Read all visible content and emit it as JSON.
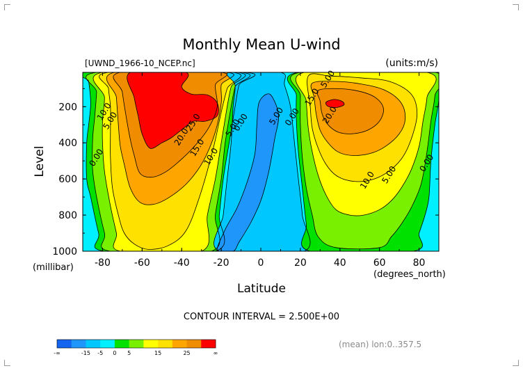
{
  "chart_data": {
    "type": "heatmap",
    "title": "Monthly Mean U-wind",
    "dataset_label": "[UWND_1966-10_NCEP.nc]",
    "units_label": "(units:m/s)",
    "xlabel": "Latitude",
    "x_units": "(degrees_north)",
    "ylabel": "Level",
    "y_units": "(millibar)",
    "x_ticks": [
      "-80",
      "-60",
      "-40",
      "-20",
      "0",
      "20",
      "40",
      "60",
      "80"
    ],
    "x_tick_values": [
      -80,
      -60,
      -40,
      -20,
      0,
      20,
      40,
      60,
      80
    ],
    "y_ticks": [
      "200",
      "400",
      "600",
      "800",
      "1000"
    ],
    "y_tick_values": [
      200,
      400,
      600,
      800,
      1000
    ],
    "xlim": [
      -90,
      90
    ],
    "ylim": [
      1000,
      10
    ],
    "contour_interval_text": "CONTOUR INTERVAL = 2.500E+00",
    "footer_right": "(mean) lon:0..357.5",
    "contour_labels": [
      {
        "text": "10.0",
        "lat": -78,
        "lev": 235
      },
      {
        "text": "5.00",
        "lat": -75,
        "lev": 285
      },
      {
        "text": "0.00",
        "lat": -82,
        "lev": 490
      },
      {
        "text": "25.0",
        "lat": -33,
        "lev": 295
      },
      {
        "text": "20.0",
        "lat": -39,
        "lev": 375
      },
      {
        "text": "15.0",
        "lat": -31,
        "lev": 435
      },
      {
        "text": "10.0",
        "lat": -24,
        "lev": 485
      },
      {
        "text": "5.00",
        "lat": -13,
        "lev": 325
      },
      {
        "text": "0.00",
        "lat": -9,
        "lev": 295
      },
      {
        "text": "5.00",
        "lat": 9,
        "lev": 260
      },
      {
        "text": "0.00",
        "lat": 17,
        "lev": 265
      },
      {
        "text": "15.0",
        "lat": 27,
        "lev": 155
      },
      {
        "text": "5.00",
        "lat": 35,
        "lev": 55
      },
      {
        "text": "20.0",
        "lat": 36,
        "lev": 255
      },
      {
        "text": "10.0",
        "lat": 55,
        "lev": 615
      },
      {
        "text": "5.00",
        "lat": 66,
        "lev": 585
      },
      {
        "text": "0.00",
        "lat": 85,
        "lev": 520
      }
    ],
    "colorbar": {
      "bins": [
        "#1464F0",
        "#1E96FA",
        "#00C8FF",
        "#00F0FF",
        "#00E100",
        "#78F000",
        "#FFFF00",
        "#FFE100",
        "#FFA500",
        "#F08C00",
        "#FF0000"
      ],
      "labels": [
        {
          "text": "-∞",
          "index": 0
        },
        {
          "text": "-15",
          "index": 2
        },
        {
          "text": "-5",
          "index": 3
        },
        {
          "text": "0",
          "index": 4
        },
        {
          "text": "5",
          "index": 5
        },
        {
          "text": "15",
          "index": 7
        },
        {
          "text": "25",
          "index": 9
        },
        {
          "text": "∞",
          "index": 11
        }
      ]
    },
    "regions": [
      {
        "name": "background",
        "color": "#00F0FF",
        "points": [
          [
            -90,
            10
          ],
          [
            90,
            10
          ],
          [
            90,
            1000
          ],
          [
            -90,
            1000
          ]
        ]
      },
      {
        "name": "southern-green",
        "color": "#00E100",
        "points": [
          [
            -88,
            10
          ],
          [
            -8,
            10
          ],
          [
            -11,
            80
          ],
          [
            -13,
            200
          ],
          [
            -16,
            400
          ],
          [
            -19,
            600
          ],
          [
            -21,
            800
          ],
          [
            -23,
            1000
          ],
          [
            -79,
            1000
          ],
          [
            -82,
            900
          ],
          [
            -86,
            700
          ],
          [
            -88,
            600
          ],
          [
            -88,
            400
          ],
          [
            -87,
            300
          ],
          [
            -86,
            180
          ],
          [
            -87,
            60
          ]
        ]
      },
      {
        "name": "southern-yellow-light",
        "color": "#78F000",
        "points": [
          [
            -83,
            10
          ],
          [
            -10,
            10
          ],
          [
            -13,
            90
          ],
          [
            -15,
            200
          ],
          [
            -18,
            400
          ],
          [
            -20,
            600
          ],
          [
            -23,
            800
          ],
          [
            -25,
            1000
          ],
          [
            -76,
            1000
          ],
          [
            -79,
            900
          ],
          [
            -83,
            700
          ],
          [
            -85,
            550
          ],
          [
            -85,
            380
          ],
          [
            -84,
            260
          ],
          [
            -83,
            120
          ]
        ]
      },
      {
        "name": "southern-yellow",
        "color": "#FFFF00",
        "points": [
          [
            -80,
            10
          ],
          [
            -12,
            10
          ],
          [
            -15,
            90
          ],
          [
            -17,
            200
          ],
          [
            -20,
            400
          ],
          [
            -23,
            600
          ],
          [
            -27,
            800
          ],
          [
            -30,
            1000
          ],
          [
            -71,
            1000
          ],
          [
            -73,
            900
          ],
          [
            -76,
            750
          ],
          [
            -79,
            560
          ],
          [
            -80,
            400
          ],
          [
            -80,
            280
          ],
          [
            -79,
            150
          ]
        ]
      },
      {
        "name": "southern-gold",
        "color": "#FFE100",
        "points": [
          [
            -77,
            10
          ],
          [
            -14,
            10
          ],
          [
            -17,
            100
          ],
          [
            -20,
            230
          ],
          [
            -24,
            430
          ],
          [
            -31,
            700
          ],
          [
            -38,
            890
          ],
          [
            -47,
            970
          ],
          [
            -57,
            990
          ],
          [
            -64,
            960
          ],
          [
            -69,
            900
          ],
          [
            -72,
            800
          ],
          [
            -75,
            650
          ],
          [
            -76,
            480
          ],
          [
            -76,
            330
          ],
          [
            -76,
            200
          ],
          [
            -77,
            100
          ]
        ]
      },
      {
        "name": "southern-orange",
        "color": "#FFA500",
        "points": [
          [
            -74,
            10
          ],
          [
            -17,
            10
          ],
          [
            -20,
            80
          ],
          [
            -20,
            180
          ],
          [
            -23,
            340
          ],
          [
            -29,
            500
          ],
          [
            -37,
            620
          ],
          [
            -46,
            700
          ],
          [
            -54,
            740
          ],
          [
            -61,
            730
          ],
          [
            -66,
            650
          ],
          [
            -69,
            520
          ],
          [
            -71,
            420
          ],
          [
            -72,
            300
          ],
          [
            -73,
            150
          ]
        ]
      },
      {
        "name": "southern-orange-dark",
        "color": "#F08C00",
        "points": [
          [
            -71,
            10
          ],
          [
            -20,
            10
          ],
          [
            -23,
            80
          ],
          [
            -22,
            200
          ],
          [
            -26,
            310
          ],
          [
            -32,
            400
          ],
          [
            -40,
            490
          ],
          [
            -48,
            560
          ],
          [
            -55,
            590
          ],
          [
            -61,
            570
          ],
          [
            -64,
            470
          ],
          [
            -66,
            380
          ],
          [
            -68,
            260
          ],
          [
            -70,
            120
          ]
        ]
      },
      {
        "name": "southern-jet-core",
        "color": "#FF0000",
        "points": [
          [
            -66,
            10
          ],
          [
            -38,
            10
          ],
          [
            -40,
            90
          ],
          [
            -35,
            130
          ],
          [
            -27,
            135
          ],
          [
            -22,
            180
          ],
          [
            -22,
            250
          ],
          [
            -28,
            280
          ],
          [
            -34,
            280
          ],
          [
            -38,
            310
          ],
          [
            -45,
            370
          ],
          [
            -50,
            400
          ],
          [
            -56,
            430
          ],
          [
            -60,
            350
          ],
          [
            -62,
            250
          ],
          [
            -64,
            150
          ]
        ]
      },
      {
        "name": "equatorial-deep-cyan",
        "color": "#00C8FF",
        "points": [
          [
            -16,
            10
          ],
          [
            10,
            10
          ],
          [
            12,
            80
          ],
          [
            15,
            200
          ],
          [
            17,
            400
          ],
          [
            19,
            600
          ],
          [
            21,
            800
          ],
          [
            22,
            1000
          ],
          [
            -21,
            1000
          ],
          [
            -19,
            800
          ],
          [
            -17,
            600
          ],
          [
            -15,
            400
          ],
          [
            -14,
            200
          ],
          [
            -13,
            80
          ]
        ]
      },
      {
        "name": "equatorial-blue-band",
        "color": "#1E96FA",
        "points": [
          [
            3,
            130
          ],
          [
            6,
            150
          ],
          [
            9,
            250
          ],
          [
            7,
            380
          ],
          [
            4,
            560
          ],
          [
            0,
            720
          ],
          [
            -5,
            840
          ],
          [
            -11,
            950
          ],
          [
            -14,
            1000
          ],
          [
            -22,
            1000
          ],
          [
            -18,
            880
          ],
          [
            -12,
            760
          ],
          [
            -7,
            620
          ],
          [
            -3,
            460
          ],
          [
            -2,
            300
          ],
          [
            -1,
            180
          ]
        ]
      },
      {
        "name": "northern-green",
        "color": "#00E100",
        "points": [
          [
            19,
            10
          ],
          [
            90,
            10
          ],
          [
            90,
            160
          ],
          [
            88,
            300
          ],
          [
            86,
            500
          ],
          [
            85,
            700
          ],
          [
            83,
            800
          ],
          [
            80,
            900
          ],
          [
            77,
            1000
          ],
          [
            25,
            1000
          ],
          [
            23,
            850
          ],
          [
            21,
            650
          ],
          [
            19,
            450
          ],
          [
            18,
            280
          ],
          [
            18,
            140
          ]
        ]
      },
      {
        "name": "northern-yellow-light",
        "color": "#78F000",
        "points": [
          [
            20,
            10
          ],
          [
            88,
            10
          ],
          [
            88,
            140
          ],
          [
            86,
            280
          ],
          [
            84,
            450
          ],
          [
            81,
            630
          ],
          [
            76,
            760
          ],
          [
            71,
            850
          ],
          [
            66,
            920
          ],
          [
            60,
            980
          ],
          [
            38,
            980
          ],
          [
            29,
            920
          ],
          [
            26,
            800
          ],
          [
            23,
            650
          ],
          [
            21,
            480
          ],
          [
            20,
            300
          ],
          [
            20,
            140
          ]
        ]
      },
      {
        "name": "northern-yellow",
        "color": "#FFFF00",
        "points": [
          [
            22,
            10
          ],
          [
            84,
            10
          ],
          [
            84,
            150
          ],
          [
            82,
            280
          ],
          [
            80,
            420
          ],
          [
            76,
            550
          ],
          [
            71,
            650
          ],
          [
            66,
            720
          ],
          [
            60,
            770
          ],
          [
            52,
            800
          ],
          [
            45,
            800
          ],
          [
            38,
            770
          ],
          [
            33,
            690
          ],
          [
            29,
            580
          ],
          [
            26,
            450
          ],
          [
            24,
            320
          ],
          [
            23,
            170
          ]
        ]
      },
      {
        "name": "northern-gold",
        "color": "#FFE100",
        "points": [
          [
            24,
            30
          ],
          [
            35,
            30
          ],
          [
            50,
            40
          ],
          [
            65,
            60
          ],
          [
            76,
            130
          ],
          [
            79,
            240
          ],
          [
            76,
            380
          ],
          [
            71,
            490
          ],
          [
            63,
            570
          ],
          [
            54,
            610
          ],
          [
            45,
            610
          ],
          [
            38,
            580
          ],
          [
            33,
            520
          ],
          [
            29,
            430
          ],
          [
            26,
            320
          ],
          [
            25,
            200
          ]
        ]
      },
      {
        "name": "northern-orange",
        "color": "#FFA500",
        "points": [
          [
            26,
            70
          ],
          [
            38,
            60
          ],
          [
            51,
            75
          ],
          [
            63,
            110
          ],
          [
            71,
            180
          ],
          [
            73,
            270
          ],
          [
            70,
            350
          ],
          [
            63,
            420
          ],
          [
            55,
            460
          ],
          [
            46,
            470
          ],
          [
            39,
            450
          ],
          [
            34,
            400
          ],
          [
            30,
            330
          ],
          [
            28,
            240
          ],
          [
            27,
            150
          ]
        ]
      },
      {
        "name": "northern-orange-dark",
        "color": "#F08C00",
        "points": [
          [
            29,
            110
          ],
          [
            39,
            100
          ],
          [
            50,
            115
          ],
          [
            58,
            150
          ],
          [
            62,
            210
          ],
          [
            60,
            280
          ],
          [
            54,
            330
          ],
          [
            46,
            350
          ],
          [
            39,
            340
          ],
          [
            34,
            300
          ],
          [
            31,
            240
          ],
          [
            30,
            170
          ]
        ]
      },
      {
        "name": "northern-jet-core",
        "color": "#FF0000",
        "points": [
          [
            33,
            175
          ],
          [
            37,
            160
          ],
          [
            41,
            170
          ],
          [
            42,
            190
          ],
          [
            38,
            205
          ],
          [
            34,
            198
          ]
        ]
      }
    ]
  }
}
